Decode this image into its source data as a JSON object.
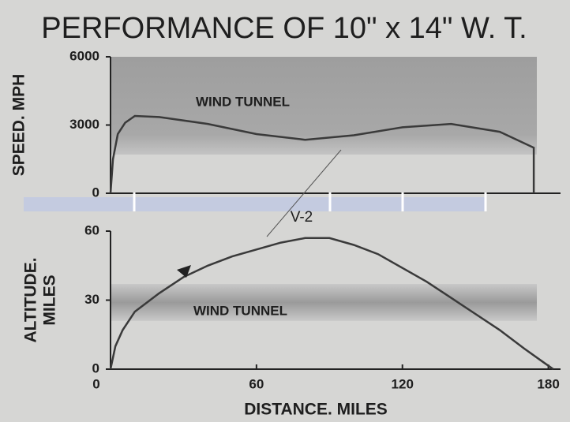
{
  "title": "PERFORMANCE OF 10\" x 14\" W. T.",
  "chart_data": [
    {
      "type": "line",
      "ylabel": "SPEED. MPH",
      "annotation": "WIND TUNNEL",
      "color": "#3a3a3a",
      "band": [
        1700,
        6000
      ],
      "xlim": [
        0,
        185
      ],
      "ylim": [
        0,
        6000
      ],
      "yticks": [
        0,
        3000,
        6000
      ],
      "x": [
        0,
        1,
        3,
        6,
        10,
        20,
        40,
        60,
        80,
        100,
        120,
        140,
        160,
        174,
        174
      ],
      "values": [
        0,
        1500,
        2600,
        3100,
        3400,
        3350,
        3050,
        2600,
        2350,
        2550,
        2900,
        3050,
        2700,
        2000,
        0
      ]
    },
    {
      "type": "line",
      "ylabel": [
        "ALTITUDE.",
        "MILES"
      ],
      "xlabel": "DISTANCE. MILES",
      "annotation": "WIND TUNNEL",
      "label": "V-2",
      "color": "#3a3a3a",
      "band": [
        21,
        37
      ],
      "xlim": [
        0,
        185
      ],
      "ylim": [
        0,
        60
      ],
      "yticks": [
        0,
        30,
        60
      ],
      "xticks": [
        0,
        60,
        120,
        180
      ],
      "x": [
        0,
        2,
        5,
        10,
        20,
        30,
        40,
        50,
        60,
        70,
        80,
        90,
        100,
        110,
        120,
        130,
        140,
        150,
        160,
        170,
        178,
        182
      ],
      "values": [
        0,
        10,
        17,
        25,
        33,
        40,
        45,
        49,
        52,
        55,
        57,
        57,
        54,
        50,
        44,
        38,
        31,
        24,
        17,
        9,
        3,
        0
      ]
    }
  ]
}
